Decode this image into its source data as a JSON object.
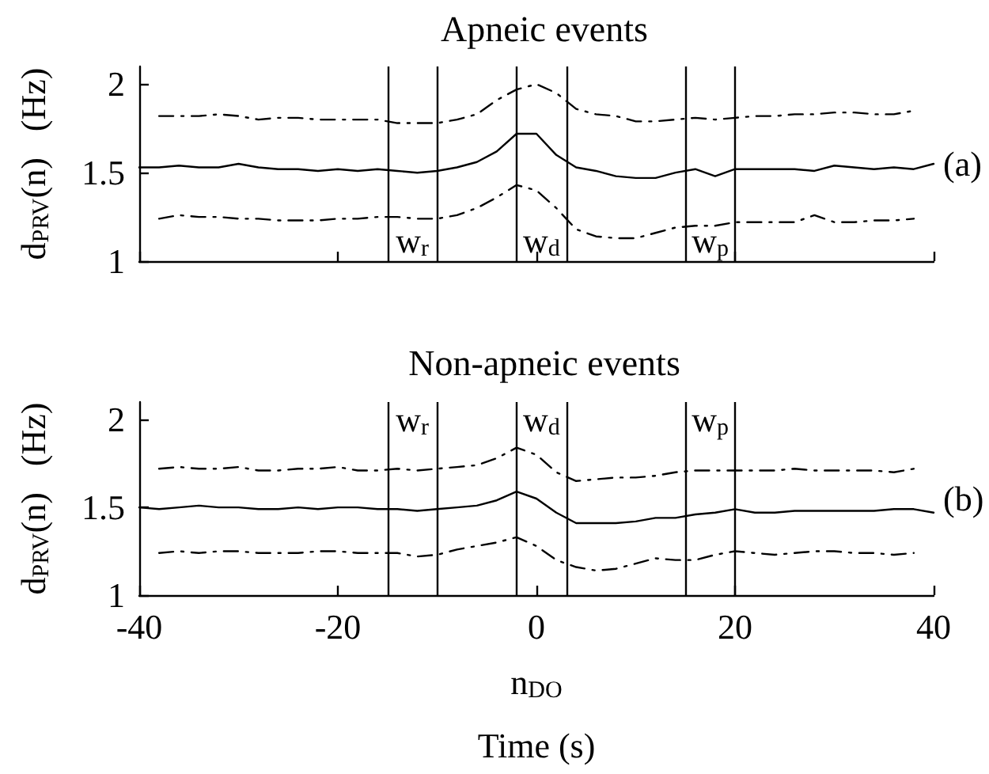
{
  "chart_data": [
    {
      "type": "line",
      "title": "Apneic events",
      "ylabel": "d$_{PRV}$(n)   (Hz)",
      "marker": "none",
      "tick_labels": "y",
      "x": [
        -40,
        -38,
        -36,
        -34,
        -32,
        -30,
        -28,
        -26,
        -24,
        -22,
        -20,
        -18,
        -16,
        -14,
        -12,
        -10,
        -8,
        -6,
        -4,
        -2,
        0,
        2,
        4,
        6,
        8,
        10,
        12,
        14,
        16,
        18,
        20,
        22,
        24,
        26,
        28,
        30,
        32,
        34,
        36,
        38,
        40
      ],
      "series": [
        {
          "color": "#000000",
          "line_style": "solid",
          "values": [
            1.53,
            1.53,
            1.54,
            1.53,
            1.53,
            1.55,
            1.53,
            1.52,
            1.52,
            1.51,
            1.52,
            1.51,
            1.52,
            1.51,
            1.5,
            1.51,
            1.53,
            1.56,
            1.62,
            1.72,
            1.72,
            1.6,
            1.53,
            1.51,
            1.48,
            1.47,
            1.47,
            1.5,
            1.52,
            1.48,
            1.52,
            1.52,
            1.52,
            1.52,
            1.51,
            1.54,
            1.53,
            1.52,
            1.53,
            1.52,
            1.55
          ]
        },
        {
          "color": "#000000",
          "line_style": "dashed",
          "values": [
            null,
            1.82,
            1.82,
            1.82,
            1.83,
            1.82,
            1.8,
            1.81,
            1.81,
            1.8,
            1.8,
            1.8,
            1.8,
            1.78,
            1.78,
            1.78,
            1.8,
            1.83,
            1.91,
            1.97,
            2.0,
            1.95,
            1.86,
            1.83,
            1.82,
            1.79,
            1.79,
            1.8,
            1.81,
            1.8,
            1.81,
            1.82,
            1.82,
            1.83,
            1.83,
            1.84,
            1.84,
            1.83,
            1.83,
            1.85,
            null
          ]
        },
        {
          "color": "#000000",
          "line_style": "dashed",
          "values": [
            null,
            1.24,
            1.26,
            1.25,
            1.25,
            1.24,
            1.24,
            1.23,
            1.23,
            1.23,
            1.24,
            1.24,
            1.25,
            1.25,
            1.24,
            1.24,
            1.26,
            1.3,
            1.36,
            1.43,
            1.4,
            1.3,
            1.18,
            1.14,
            1.13,
            1.13,
            1.16,
            1.19,
            1.2,
            1.2,
            1.22,
            1.22,
            1.22,
            1.22,
            1.26,
            1.22,
            1.22,
            1.23,
            1.23,
            1.24,
            null
          ]
        }
      ],
      "xlim": [
        -40,
        40
      ],
      "xticks": [
        -40,
        -20,
        0,
        20,
        40
      ],
      "ylim": [
        1,
        2.1
      ],
      "yticks": [
        1,
        1.5,
        2
      ],
      "ref_lines": [
        {
          "axis": "x",
          "value": -15,
          "color": "#000000"
        },
        {
          "axis": "x",
          "value": -10,
          "color": "#000000"
        },
        {
          "axis": "x",
          "value": -2,
          "color": "#000000"
        },
        {
          "axis": "x",
          "value": 3,
          "color": "#000000"
        },
        {
          "axis": "x",
          "value": 15,
          "color": "#000000"
        },
        {
          "axis": "x",
          "value": 20,
          "color": "#000000"
        }
      ],
      "annotations": [
        "w$_{r}$",
        "w$_{d}$",
        "w$_{p}$",
        "(a)"
      ]
    },
    {
      "type": "line",
      "title": "Non-apneic events",
      "xlabel": "n$_{DO}$",
      "ylabel": "d$_{PRV}$(n)   (Hz)",
      "marker": "none",
      "x": [
        -40,
        -38,
        -36,
        -34,
        -32,
        -30,
        -28,
        -26,
        -24,
        -22,
        -20,
        -18,
        -16,
        -14,
        -12,
        -10,
        -8,
        -6,
        -4,
        -2,
        0,
        2,
        4,
        6,
        8,
        10,
        12,
        14,
        16,
        18,
        20,
        22,
        24,
        26,
        28,
        30,
        32,
        34,
        36,
        38,
        40
      ],
      "series": [
        {
          "color": "#000000",
          "line_style": "solid",
          "values": [
            1.5,
            1.49,
            1.5,
            1.51,
            1.5,
            1.5,
            1.49,
            1.49,
            1.5,
            1.49,
            1.5,
            1.5,
            1.49,
            1.49,
            1.48,
            1.49,
            1.5,
            1.51,
            1.54,
            1.59,
            1.55,
            1.47,
            1.41,
            1.41,
            1.41,
            1.42,
            1.44,
            1.44,
            1.46,
            1.47,
            1.49,
            1.47,
            1.47,
            1.48,
            1.48,
            1.48,
            1.48,
            1.48,
            1.49,
            1.49,
            1.47
          ]
        },
        {
          "color": "#000000",
          "line_style": "dashed",
          "values": [
            null,
            1.72,
            1.73,
            1.72,
            1.72,
            1.73,
            1.71,
            1.71,
            1.72,
            1.72,
            1.73,
            1.71,
            1.71,
            1.72,
            1.71,
            1.72,
            1.73,
            1.74,
            1.78,
            1.84,
            1.8,
            1.7,
            1.65,
            1.66,
            1.67,
            1.67,
            1.68,
            1.7,
            1.71,
            1.71,
            1.71,
            1.71,
            1.71,
            1.72,
            1.71,
            1.71,
            1.71,
            1.71,
            1.7,
            1.72,
            null
          ]
        },
        {
          "color": "#000000",
          "line_style": "dashed",
          "values": [
            null,
            1.24,
            1.25,
            1.24,
            1.25,
            1.25,
            1.24,
            1.24,
            1.24,
            1.25,
            1.25,
            1.24,
            1.24,
            1.24,
            1.22,
            1.23,
            1.26,
            1.28,
            1.3,
            1.33,
            1.28,
            1.2,
            1.16,
            1.14,
            1.15,
            1.18,
            1.21,
            1.2,
            1.2,
            1.23,
            1.25,
            1.24,
            1.23,
            1.24,
            1.25,
            1.25,
            1.24,
            1.24,
            1.23,
            1.24,
            null
          ]
        }
      ],
      "xlim": [
        -40,
        40
      ],
      "xticks": [
        -40,
        -20,
        0,
        20,
        40
      ],
      "ylim": [
        1,
        2.1
      ],
      "yticks": [
        1,
        1.5,
        2
      ],
      "ref_lines": [
        {
          "axis": "x",
          "value": -15,
          "color": "#000000"
        },
        {
          "axis": "x",
          "value": -10,
          "color": "#000000"
        },
        {
          "axis": "x",
          "value": -2,
          "color": "#000000"
        },
        {
          "axis": "x",
          "value": 3,
          "color": "#000000"
        },
        {
          "axis": "x",
          "value": 15,
          "color": "#000000"
        },
        {
          "axis": "x",
          "value": 20,
          "color": "#000000"
        }
      ],
      "annotations": [
        "w$_{r}$",
        "w$_{d}$",
        "w$_{p}$",
        "(b)",
        "Time (s)"
      ]
    }
  ]
}
